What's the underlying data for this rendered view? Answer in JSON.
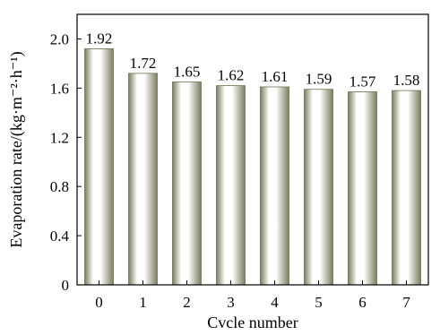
{
  "chart_data": {
    "type": "bar",
    "xlabel": "Cvcle number",
    "ylabel": "Evaporation rate/(kg·m⁻²·h⁻¹)",
    "categories": [
      "0",
      "1",
      "2",
      "3",
      "4",
      "5",
      "6",
      "7"
    ],
    "values": [
      1.92,
      1.72,
      1.65,
      1.62,
      1.61,
      1.59,
      1.57,
      1.58
    ],
    "value_labels": [
      "1.92",
      "1.72",
      "1.65",
      "1.62",
      "1.61",
      "1.59",
      "1.57",
      "1.58"
    ],
    "ylim": [
      0,
      2.2
    ],
    "yticks": [
      0,
      0.4,
      0.8,
      1.2,
      1.6,
      2.0
    ],
    "ytick_labels": [
      "0",
      "0.4",
      "0.8",
      "1.2",
      "1.6",
      "2.0"
    ],
    "grid": false,
    "legend": "none",
    "colors": {
      "bar_edge": "#6f6f52",
      "bar_light": "#ffffff",
      "bar_dark": "#7d7d5e"
    }
  }
}
